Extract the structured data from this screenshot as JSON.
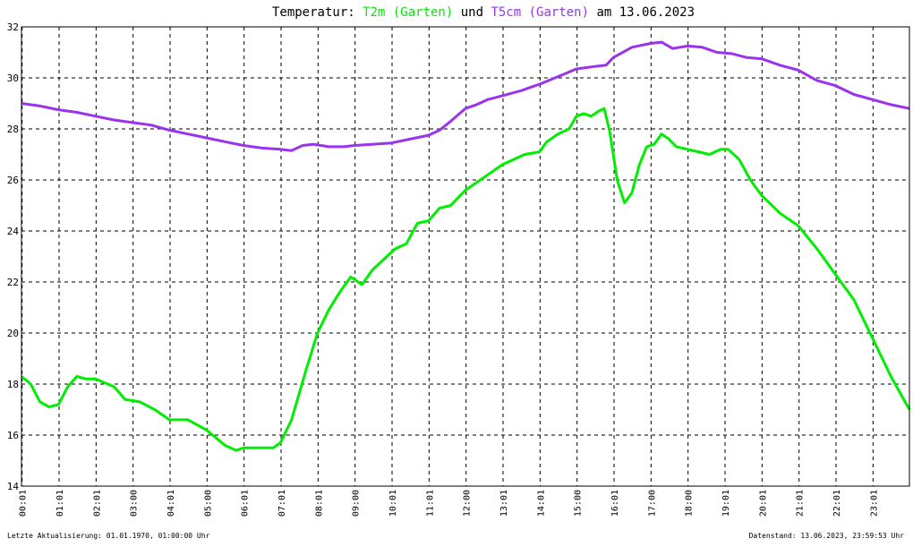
{
  "header": {
    "prefix": "Temperatur: ",
    "series1": "T2m (Garten)",
    "joiner": " und ",
    "series2": "T5cm (Garten)",
    "suffix": " am 13.06.2023"
  },
  "footer": {
    "left": "Letzte Aktualisierung: 01.01.1970, 01:00:00 Uhr",
    "right": "Datenstand: 13.06.2023, 23:59:53 Uhr"
  },
  "colors": {
    "t2m": "#00ee00",
    "t5cm": "#9933ee",
    "grid": "#000000",
    "background": "#ffffff"
  },
  "chart_data": {
    "type": "line",
    "title": "Temperatur: T2m (Garten) und T5cm (Garten) am 13.06.2023",
    "xlabel": "",
    "ylabel": "",
    "xlim": [
      0,
      24
    ],
    "ylim": [
      14,
      32
    ],
    "grid": true,
    "y_ticks": [
      14,
      16,
      18,
      20,
      22,
      24,
      26,
      28,
      30,
      32
    ],
    "x_ticks": [
      "00:01",
      "01:01",
      "02:01",
      "03:00",
      "04:01",
      "05:00",
      "06:01",
      "07:01",
      "08:01",
      "09:00",
      "10:01",
      "11:01",
      "12:00",
      "13:01",
      "14:01",
      "15:00",
      "16:01",
      "17:00",
      "18:00",
      "19:01",
      "20:01",
      "21:01",
      "22:01",
      "23:01"
    ],
    "series": [
      {
        "name": "T2m (Garten)",
        "color": "#00ee00",
        "points": [
          [
            0.0,
            18.3
          ],
          [
            0.25,
            18.0
          ],
          [
            0.5,
            17.3
          ],
          [
            0.75,
            17.1
          ],
          [
            1.0,
            17.2
          ],
          [
            1.25,
            17.9
          ],
          [
            1.5,
            18.3
          ],
          [
            1.75,
            18.2
          ],
          [
            2.0,
            18.2
          ],
          [
            2.5,
            17.9
          ],
          [
            2.8,
            17.4
          ],
          [
            3.2,
            17.3
          ],
          [
            3.6,
            17.0
          ],
          [
            4.0,
            16.6
          ],
          [
            4.5,
            16.6
          ],
          [
            5.0,
            16.2
          ],
          [
            5.5,
            15.6
          ],
          [
            5.8,
            15.4
          ],
          [
            6.0,
            15.5
          ],
          [
            6.5,
            15.5
          ],
          [
            6.8,
            15.5
          ],
          [
            7.0,
            15.7
          ],
          [
            7.3,
            16.6
          ],
          [
            7.5,
            17.6
          ],
          [
            7.7,
            18.6
          ],
          [
            8.0,
            20.0
          ],
          [
            8.3,
            20.9
          ],
          [
            8.6,
            21.6
          ],
          [
            8.9,
            22.2
          ],
          [
            9.2,
            21.9
          ],
          [
            9.5,
            22.5
          ],
          [
            9.8,
            22.9
          ],
          [
            10.1,
            23.3
          ],
          [
            10.4,
            23.5
          ],
          [
            10.7,
            24.3
          ],
          [
            11.0,
            24.4
          ],
          [
            11.3,
            24.9
          ],
          [
            11.6,
            25.0
          ],
          [
            12.0,
            25.6
          ],
          [
            12.3,
            25.9
          ],
          [
            12.6,
            26.2
          ],
          [
            13.0,
            26.6
          ],
          [
            13.3,
            26.8
          ],
          [
            13.6,
            27.0
          ],
          [
            14.0,
            27.1
          ],
          [
            14.2,
            27.5
          ],
          [
            14.5,
            27.8
          ],
          [
            14.8,
            28.0
          ],
          [
            15.0,
            28.5
          ],
          [
            15.2,
            28.6
          ],
          [
            15.4,
            28.5
          ],
          [
            15.6,
            28.7
          ],
          [
            15.75,
            28.8
          ],
          [
            15.9,
            27.9
          ],
          [
            16.1,
            26.0
          ],
          [
            16.3,
            25.1
          ],
          [
            16.5,
            25.5
          ],
          [
            16.7,
            26.6
          ],
          [
            16.9,
            27.3
          ],
          [
            17.1,
            27.4
          ],
          [
            17.3,
            27.8
          ],
          [
            17.5,
            27.6
          ],
          [
            17.7,
            27.3
          ],
          [
            18.0,
            27.2
          ],
          [
            18.3,
            27.1
          ],
          [
            18.6,
            27.0
          ],
          [
            18.9,
            27.2
          ],
          [
            19.1,
            27.2
          ],
          [
            19.4,
            26.8
          ],
          [
            19.7,
            26.0
          ],
          [
            20.0,
            25.4
          ],
          [
            20.5,
            24.7
          ],
          [
            21.0,
            24.2
          ],
          [
            21.5,
            23.3
          ],
          [
            22.0,
            22.3
          ],
          [
            22.5,
            21.3
          ],
          [
            23.0,
            19.8
          ],
          [
            23.5,
            18.3
          ],
          [
            24.0,
            17.0
          ]
        ]
      },
      {
        "name": "T5cm (Garten)",
        "color": "#9933ee",
        "points": [
          [
            0.0,
            29.0
          ],
          [
            0.5,
            28.9
          ],
          [
            1.0,
            28.75
          ],
          [
            1.5,
            28.65
          ],
          [
            2.0,
            28.5
          ],
          [
            2.5,
            28.35
          ],
          [
            3.0,
            28.25
          ],
          [
            3.5,
            28.15
          ],
          [
            4.0,
            27.95
          ],
          [
            4.5,
            27.8
          ],
          [
            5.0,
            27.65
          ],
          [
            5.5,
            27.5
          ],
          [
            6.0,
            27.35
          ],
          [
            6.5,
            27.25
          ],
          [
            7.0,
            27.2
          ],
          [
            7.3,
            27.15
          ],
          [
            7.6,
            27.35
          ],
          [
            7.9,
            27.4
          ],
          [
            8.3,
            27.3
          ],
          [
            8.7,
            27.3
          ],
          [
            9.0,
            27.35
          ],
          [
            9.5,
            27.4
          ],
          [
            10.0,
            27.45
          ],
          [
            10.5,
            27.6
          ],
          [
            11.0,
            27.75
          ],
          [
            11.3,
            27.95
          ],
          [
            11.6,
            28.3
          ],
          [
            12.0,
            28.8
          ],
          [
            12.3,
            28.95
          ],
          [
            12.6,
            29.15
          ],
          [
            13.0,
            29.3
          ],
          [
            13.5,
            29.5
          ],
          [
            14.0,
            29.75
          ],
          [
            14.5,
            30.05
          ],
          [
            15.0,
            30.35
          ],
          [
            15.5,
            30.45
          ],
          [
            15.8,
            30.5
          ],
          [
            16.0,
            30.8
          ],
          [
            16.5,
            31.2
          ],
          [
            17.0,
            31.35
          ],
          [
            17.3,
            31.4
          ],
          [
            17.6,
            31.15
          ],
          [
            18.0,
            31.25
          ],
          [
            18.4,
            31.2
          ],
          [
            18.8,
            31.0
          ],
          [
            19.2,
            30.95
          ],
          [
            19.6,
            30.8
          ],
          [
            20.0,
            30.75
          ],
          [
            20.5,
            30.5
          ],
          [
            21.0,
            30.3
          ],
          [
            21.5,
            29.9
          ],
          [
            22.0,
            29.7
          ],
          [
            22.5,
            29.35
          ],
          [
            23.0,
            29.15
          ],
          [
            23.5,
            28.95
          ],
          [
            24.0,
            28.8
          ]
        ]
      }
    ]
  }
}
